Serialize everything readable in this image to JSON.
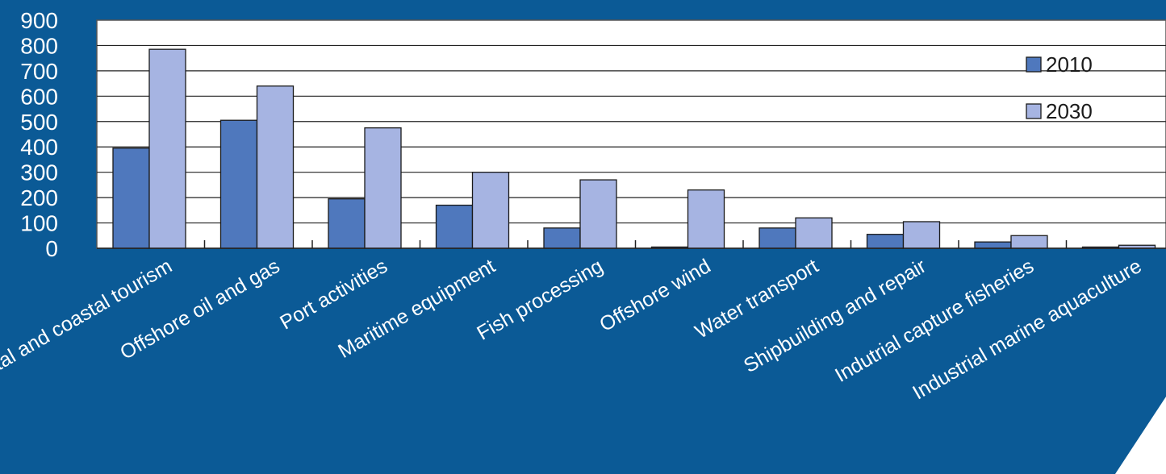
{
  "chart_data": {
    "type": "bar",
    "categories": [
      "Coastal and coastal tourism",
      "Offshore oil and gas",
      "Port activities",
      "Maritime equipment",
      "Fish processing",
      "Offshore wind",
      "Water transport",
      "Shipbuilding and repair",
      "Indutrial capture fisheries",
      "Industrial marine aquaculture"
    ],
    "series": [
      {
        "name": "2010",
        "color": "#4f78bd",
        "values": [
          395,
          505,
          195,
          170,
          80,
          5,
          80,
          55,
          25,
          5
        ]
      },
      {
        "name": "2030",
        "color": "#a6b4e2",
        "values": [
          785,
          640,
          475,
          300,
          270,
          230,
          120,
          105,
          50,
          12
        ]
      }
    ],
    "title": "",
    "xlabel": "",
    "ylabel": "",
    "ylim": [
      0,
      900
    ],
    "yticks": [
      "0",
      "100",
      "200",
      "300",
      "400",
      "500",
      "600",
      "700",
      "800",
      "900"
    ],
    "grid": true,
    "legend_position": "top-right",
    "background_color": "#0b5a96",
    "plot_background_color": "#ffffff"
  }
}
